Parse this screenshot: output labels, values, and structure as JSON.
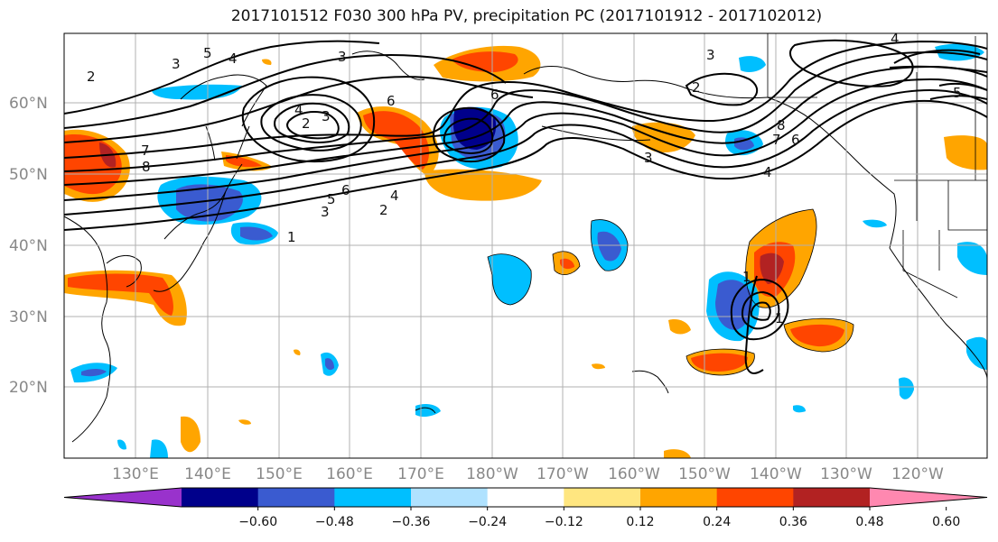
{
  "title": "2017101512 F030 300 hPa PV, precipitation PC (2017101912 - 2017102012)",
  "lat_labels": [
    "60°N",
    "50°N",
    "40°N",
    "30°N",
    "20°N"
  ],
  "lon_labels": [
    "130°E",
    "140°E",
    "150°E",
    "160°E",
    "170°E",
    "180°W",
    "170°W",
    "160°W",
    "150°W",
    "140°W",
    "130°W",
    "120°W"
  ],
  "colorbar": {
    "ticks": [
      "−0.60",
      "−0.48",
      "−0.36",
      "−0.24",
      "−0.12",
      "0.12",
      "0.24",
      "0.36",
      "0.48",
      "0.60"
    ],
    "colors": [
      "#9932cc",
      "#00008b",
      "#3a5bd0",
      "#00bfff",
      "#b0e2ff",
      "#ffffff",
      "#ffe680",
      "#ffa500",
      "#ff4500",
      "#b22222",
      "#ff88b0"
    ]
  },
  "contour_labels": [
    "1",
    "2",
    "3",
    "4",
    "5",
    "6",
    "7",
    "8"
  ]
}
